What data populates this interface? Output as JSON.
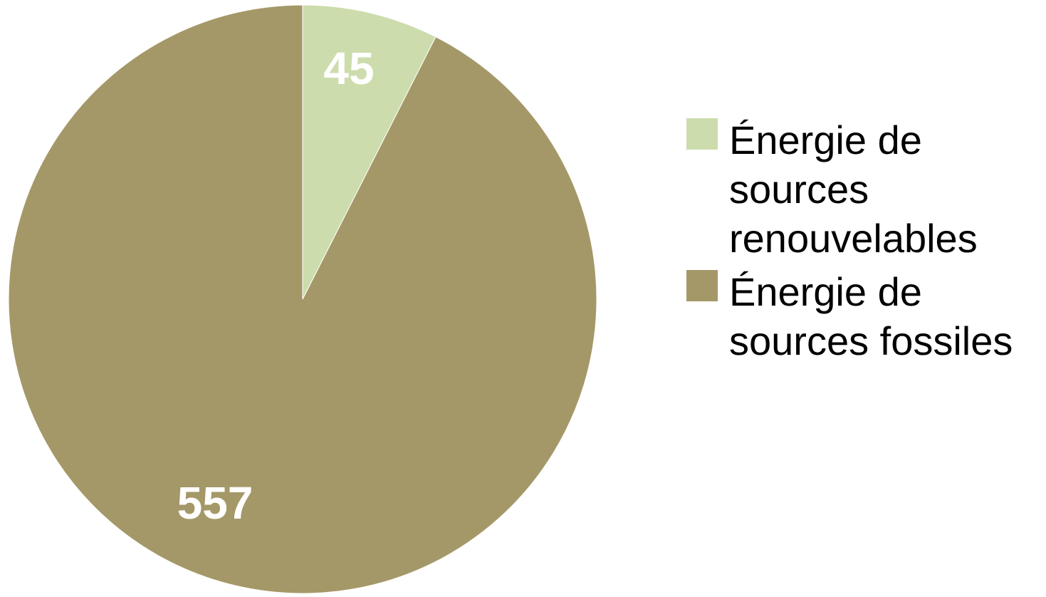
{
  "chart_data": {
    "type": "pie",
    "title": "",
    "slices": [
      {
        "label": "Énergie de sources renouvelables",
        "value": 45,
        "color": "#ccdcac"
      },
      {
        "label": "Énergie de sources fossiles",
        "value": 557,
        "color": "#a59868"
      }
    ],
    "data_labels": [
      "45",
      "557"
    ],
    "legend_position": "right"
  }
}
